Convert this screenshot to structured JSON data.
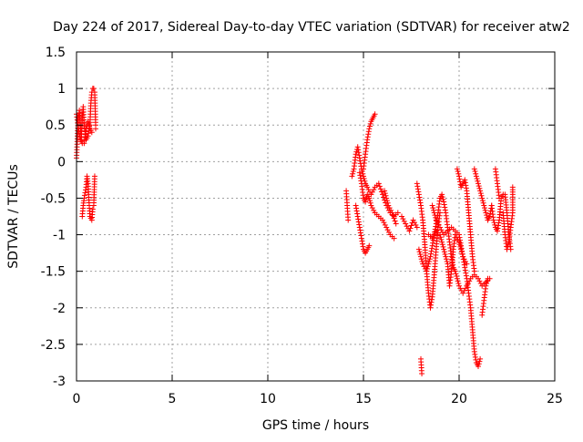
{
  "chart_data": {
    "type": "scatter",
    "title": "Day 224 of 2017, Sidereal Day-to-day VTEC variation (SDTVAR) for receiver atw2",
    "xlabel": "GPS time / hours",
    "ylabel": "SDTVAR / TECUs",
    "xlim": [
      0,
      25
    ],
    "ylim": [
      -3,
      1.5
    ],
    "xticks": [
      0,
      5,
      10,
      15,
      20,
      25
    ],
    "yticks": [
      -3,
      -2.5,
      -2,
      -1.5,
      -1,
      -0.5,
      0,
      0.5,
      1,
      1.5
    ],
    "xtick_labels": [
      "0",
      "5",
      "10",
      "15",
      "20",
      "25"
    ],
    "ytick_labels": [
      "-3",
      "-2.5",
      "-2",
      "-1.5",
      "-1",
      "-0.5",
      "0",
      "0.5",
      "1",
      "1.5"
    ],
    "grid": true,
    "marker": "+",
    "series": [
      {
        "name": "SDTVAR",
        "color": "#ff0000",
        "segments": [
          [
            [
              0.0,
              0.05
            ],
            [
              0.05,
              0.35
            ],
            [
              0.1,
              0.6
            ],
            [
              0.15,
              0.7
            ],
            [
              0.2,
              0.5
            ],
            [
              0.25,
              0.3
            ],
            [
              0.3,
              0.6
            ],
            [
              0.35,
              0.75
            ],
            [
              0.4,
              0.5
            ],
            [
              0.5,
              0.3
            ],
            [
              0.6,
              0.35
            ],
            [
              0.7,
              0.5
            ],
            [
              0.75,
              0.8
            ],
            [
              0.8,
              0.95
            ],
            [
              0.85,
              1.0
            ],
            [
              0.9,
              1.0
            ],
            [
              0.95,
              0.95
            ],
            [
              1.0,
              0.5
            ],
            [
              1.0,
              0.45
            ]
          ],
          [
            [
              0.0,
              0.65
            ],
            [
              0.1,
              0.45
            ],
            [
              0.2,
              0.3
            ],
            [
              0.3,
              0.25
            ],
            [
              0.4,
              0.25
            ],
            [
              0.5,
              0.45
            ],
            [
              0.6,
              0.55
            ],
            [
              0.7,
              0.45
            ],
            [
              0.8,
              0.4
            ]
          ],
          [
            [
              0.3,
              -0.75
            ],
            [
              0.35,
              -0.6
            ],
            [
              0.4,
              -0.5
            ],
            [
              0.5,
              -0.35
            ],
            [
              0.55,
              -0.2
            ],
            [
              0.6,
              -0.3
            ],
            [
              0.7,
              -0.75
            ],
            [
              0.8,
              -0.8
            ],
            [
              0.85,
              -0.65
            ],
            [
              0.9,
              -0.6
            ],
            [
              0.95,
              -0.2
            ]
          ],
          [
            [
              14.1,
              -0.4
            ],
            [
              14.15,
              -0.6
            ],
            [
              14.2,
              -0.8
            ]
          ],
          [
            [
              14.4,
              -0.2
            ],
            [
              14.5,
              -0.1
            ],
            [
              14.6,
              0.1
            ],
            [
              14.7,
              0.2
            ],
            [
              14.8,
              0.05
            ],
            [
              14.9,
              -0.1
            ],
            [
              15.0,
              -0.2
            ],
            [
              15.1,
              -0.3
            ],
            [
              15.2,
              -0.35
            ],
            [
              15.4,
              -0.45
            ],
            [
              15.6,
              -0.35
            ],
            [
              15.8,
              -0.3
            ],
            [
              16.0,
              -0.45
            ],
            [
              16.2,
              -0.6
            ],
            [
              16.4,
              -0.7
            ],
            [
              16.6,
              -0.75
            ],
            [
              16.8,
              -0.7
            ]
          ],
          [
            [
              14.8,
              -0.15
            ],
            [
              14.9,
              -0.3
            ],
            [
              15.0,
              -0.5
            ],
            [
              15.1,
              -0.55
            ],
            [
              15.2,
              -0.45
            ],
            [
              15.3,
              -0.5
            ],
            [
              15.4,
              -0.6
            ],
            [
              15.6,
              -0.7
            ],
            [
              15.8,
              -0.75
            ],
            [
              16.0,
              -0.8
            ],
            [
              16.2,
              -0.9
            ],
            [
              16.4,
              -1.0
            ],
            [
              16.6,
              -1.05
            ]
          ],
          [
            [
              14.6,
              -0.6
            ],
            [
              14.7,
              -0.75
            ],
            [
              14.8,
              -0.9
            ],
            [
              14.9,
              -1.05
            ],
            [
              15.0,
              -1.2
            ],
            [
              15.1,
              -1.25
            ],
            [
              15.2,
              -1.2
            ],
            [
              15.3,
              -1.15
            ]
          ],
          [
            [
              15.0,
              -0.1
            ],
            [
              15.1,
              0.1
            ],
            [
              15.2,
              0.3
            ],
            [
              15.3,
              0.45
            ],
            [
              15.4,
              0.55
            ],
            [
              15.5,
              0.6
            ],
            [
              15.6,
              0.65
            ]
          ],
          [
            [
              16.1,
              -0.4
            ],
            [
              16.3,
              -0.6
            ],
            [
              16.5,
              -0.7
            ],
            [
              16.7,
              -0.85
            ]
          ],
          [
            [
              17.0,
              -0.75
            ],
            [
              17.2,
              -0.85
            ],
            [
              17.4,
              -0.95
            ],
            [
              17.6,
              -0.8
            ],
            [
              17.8,
              -0.9
            ]
          ],
          [
            [
              17.8,
              -0.3
            ],
            [
              17.9,
              -0.45
            ],
            [
              18.0,
              -0.6
            ],
            [
              18.1,
              -0.8
            ],
            [
              18.2,
              -1.1
            ],
            [
              18.3,
              -1.5
            ],
            [
              18.4,
              -1.8
            ],
            [
              18.5,
              -2.0
            ],
            [
              18.6,
              -1.85
            ],
            [
              18.7,
              -1.55
            ],
            [
              18.8,
              -1.2
            ],
            [
              18.9,
              -0.9
            ],
            [
              19.0,
              -0.7
            ]
          ],
          [
            [
              18.0,
              -2.7
            ],
            [
              18.05,
              -2.9
            ]
          ],
          [
            [
              17.9,
              -1.2
            ],
            [
              18.1,
              -1.4
            ],
            [
              18.3,
              -1.5
            ],
            [
              18.5,
              -1.3
            ],
            [
              18.7,
              -1.0
            ],
            [
              18.9,
              -0.7
            ],
            [
              19.0,
              -0.5
            ],
            [
              19.1,
              -0.45
            ],
            [
              19.2,
              -0.55
            ],
            [
              19.3,
              -0.7
            ],
            [
              19.4,
              -0.9
            ],
            [
              19.5,
              -1.1
            ],
            [
              19.6,
              -1.3
            ],
            [
              19.7,
              -1.45
            ],
            [
              19.8,
              -1.5
            ],
            [
              19.9,
              -1.6
            ],
            [
              20.0,
              -1.7
            ],
            [
              20.2,
              -1.8
            ],
            [
              20.4,
              -1.7
            ],
            [
              20.6,
              -1.6
            ],
            [
              20.8,
              -1.55
            ],
            [
              21.0,
              -1.6
            ],
            [
              21.2,
              -1.7
            ],
            [
              21.4,
              -1.65
            ],
            [
              21.6,
              -1.6
            ]
          ],
          [
            [
              18.6,
              -0.6
            ],
            [
              18.8,
              -0.8
            ],
            [
              19.0,
              -0.9
            ],
            [
              19.2,
              -1.0
            ],
            [
              19.4,
              -0.95
            ],
            [
              19.6,
              -0.9
            ],
            [
              19.8,
              -0.95
            ],
            [
              20.0,
              -1.0
            ],
            [
              20.2,
              -1.3
            ],
            [
              20.4,
              -1.6
            ],
            [
              20.5,
              -1.8
            ],
            [
              20.6,
              -2.0
            ],
            [
              20.7,
              -2.3
            ],
            [
              20.8,
              -2.6
            ],
            [
              20.9,
              -2.75
            ],
            [
              21.0,
              -2.8
            ],
            [
              21.1,
              -2.7
            ]
          ],
          [
            [
              18.4,
              -1.0
            ],
            [
              18.6,
              -1.05
            ],
            [
              18.8,
              -0.95
            ],
            [
              19.0,
              -1.0
            ],
            [
              19.2,
              -1.2
            ],
            [
              19.4,
              -1.4
            ],
            [
              19.5,
              -1.7
            ],
            [
              19.6,
              -1.5
            ],
            [
              19.7,
              -1.2
            ],
            [
              19.8,
              -1.0
            ],
            [
              20.0,
              -1.1
            ],
            [
              20.2,
              -1.3
            ],
            [
              20.4,
              -1.4
            ]
          ],
          [
            [
              19.9,
              -0.1
            ],
            [
              20.0,
              -0.2
            ],
            [
              20.1,
              -0.35
            ],
            [
              20.2,
              -0.3
            ],
            [
              20.3,
              -0.25
            ],
            [
              20.4,
              -0.4
            ],
            [
              20.5,
              -0.7
            ],
            [
              20.6,
              -1.0
            ],
            [
              20.7,
              -1.3
            ],
            [
              20.8,
              -1.5
            ]
          ],
          [
            [
              20.8,
              -0.1
            ],
            [
              20.9,
              -0.2
            ],
            [
              21.0,
              -0.3
            ],
            [
              21.1,
              -0.4
            ],
            [
              21.2,
              -0.5
            ],
            [
              21.3,
              -0.6
            ],
            [
              21.4,
              -0.7
            ],
            [
              21.5,
              -0.8
            ],
            [
              21.6,
              -0.75
            ],
            [
              21.7,
              -0.6
            ]
          ],
          [
            [
              21.2,
              -2.1
            ],
            [
              21.3,
              -1.9
            ],
            [
              21.4,
              -1.7
            ],
            [
              21.5,
              -1.6
            ]
          ],
          [
            [
              21.7,
              -0.6
            ],
            [
              21.8,
              -0.8
            ],
            [
              21.9,
              -0.9
            ],
            [
              22.0,
              -0.95
            ],
            [
              22.1,
              -0.8
            ],
            [
              22.2,
              -0.5
            ],
            [
              22.3,
              -0.45
            ],
            [
              22.4,
              -0.45
            ],
            [
              22.5,
              -0.7
            ],
            [
              22.6,
              -1.0
            ],
            [
              22.7,
              -1.2
            ]
          ],
          [
            [
              21.9,
              -0.1
            ],
            [
              22.0,
              -0.3
            ],
            [
              22.1,
              -0.5
            ]
          ],
          [
            [
              22.3,
              -0.7
            ],
            [
              22.4,
              -1.0
            ],
            [
              22.5,
              -1.2
            ],
            [
              22.6,
              -1.1
            ],
            [
              22.7,
              -0.9
            ],
            [
              22.8,
              -0.7
            ],
            [
              22.8,
              -0.45
            ],
            [
              22.8,
              -0.35
            ]
          ]
        ]
      }
    ]
  }
}
